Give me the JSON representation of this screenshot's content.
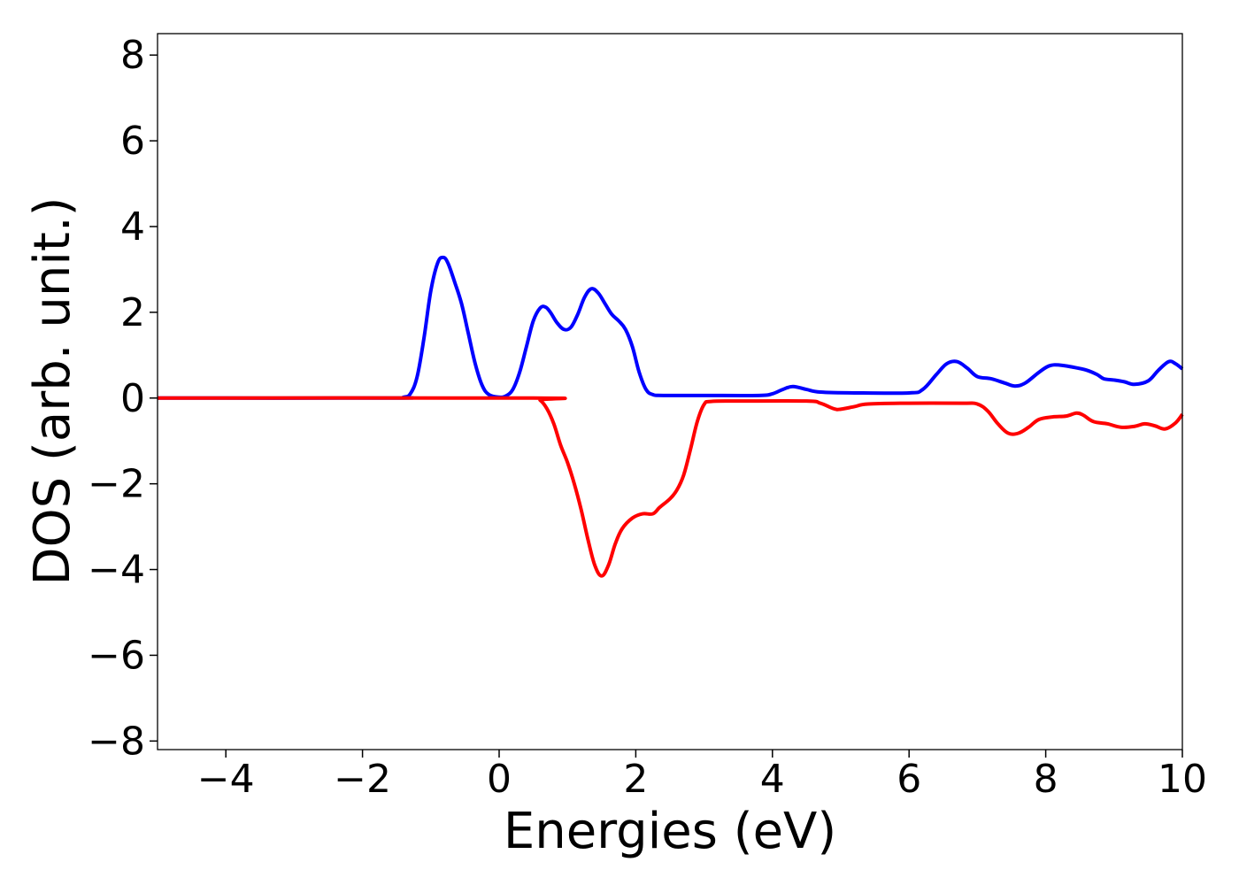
{
  "chart_data": {
    "type": "line",
    "xlabel": "Energies (eV)",
    "ylabel": "DOS (arb. unit.)",
    "xlim": [
      -5,
      10
    ],
    "ylim": [
      -8.2,
      8.5
    ],
    "xticks": [
      -4,
      -2,
      0,
      2,
      4,
      6,
      8,
      10
    ],
    "yticks": [
      -8,
      -6,
      -4,
      -2,
      0,
      2,
      4,
      6,
      8
    ],
    "xtick_labels": [
      "−4",
      "−2",
      "0",
      "2",
      "4",
      "6",
      "8",
      "10"
    ],
    "ytick_labels": [
      "−8",
      "−6",
      "−4",
      "−2",
      "0",
      "2",
      "4",
      "6",
      "8"
    ],
    "grid": false,
    "series": [
      {
        "color": "#0000ff",
        "points": [
          [
            -5,
            0
          ],
          [
            -1.6,
            0
          ],
          [
            -1.4,
            0.02
          ],
          [
            -1.3,
            0.1
          ],
          [
            -1.2,
            0.5
          ],
          [
            -1.1,
            1.4
          ],
          [
            -1.0,
            2.5
          ],
          [
            -0.9,
            3.15
          ],
          [
            -0.82,
            3.28
          ],
          [
            -0.75,
            3.15
          ],
          [
            -0.65,
            2.7
          ],
          [
            -0.55,
            2.2
          ],
          [
            -0.45,
            1.5
          ],
          [
            -0.35,
            0.8
          ],
          [
            -0.25,
            0.3
          ],
          [
            -0.15,
            0.08
          ],
          [
            0,
            0.02
          ],
          [
            0.1,
            0.05
          ],
          [
            0.2,
            0.2
          ],
          [
            0.3,
            0.6
          ],
          [
            0.4,
            1.2
          ],
          [
            0.5,
            1.8
          ],
          [
            0.6,
            2.1
          ],
          [
            0.68,
            2.12
          ],
          [
            0.75,
            2.0
          ],
          [
            0.85,
            1.75
          ],
          [
            0.95,
            1.6
          ],
          [
            1.05,
            1.65
          ],
          [
            1.15,
            1.95
          ],
          [
            1.25,
            2.35
          ],
          [
            1.35,
            2.55
          ],
          [
            1.45,
            2.45
          ],
          [
            1.55,
            2.2
          ],
          [
            1.65,
            1.95
          ],
          [
            1.75,
            1.8
          ],
          [
            1.85,
            1.6
          ],
          [
            1.95,
            1.2
          ],
          [
            2.05,
            0.6
          ],
          [
            2.15,
            0.2
          ],
          [
            2.25,
            0.08
          ],
          [
            2.4,
            0.06
          ],
          [
            3.0,
            0.06
          ],
          [
            3.8,
            0.06
          ],
          [
            4.0,
            0.1
          ],
          [
            4.15,
            0.2
          ],
          [
            4.3,
            0.27
          ],
          [
            4.5,
            0.2
          ],
          [
            4.7,
            0.14
          ],
          [
            5.2,
            0.12
          ],
          [
            6.0,
            0.12
          ],
          [
            6.2,
            0.2
          ],
          [
            6.4,
            0.55
          ],
          [
            6.55,
            0.8
          ],
          [
            6.7,
            0.85
          ],
          [
            6.85,
            0.7
          ],
          [
            7.0,
            0.5
          ],
          [
            7.2,
            0.45
          ],
          [
            7.4,
            0.35
          ],
          [
            7.55,
            0.28
          ],
          [
            7.7,
            0.35
          ],
          [
            7.9,
            0.6
          ],
          [
            8.05,
            0.75
          ],
          [
            8.2,
            0.77
          ],
          [
            8.4,
            0.72
          ],
          [
            8.6,
            0.65
          ],
          [
            8.75,
            0.55
          ],
          [
            8.85,
            0.45
          ],
          [
            9.0,
            0.42
          ],
          [
            9.15,
            0.38
          ],
          [
            9.3,
            0.32
          ],
          [
            9.5,
            0.4
          ],
          [
            9.65,
            0.65
          ],
          [
            9.8,
            0.85
          ],
          [
            9.9,
            0.8
          ],
          [
            10.0,
            0.68
          ]
        ]
      },
      {
        "color": "#ff0000",
        "points": [
          [
            -5,
            0
          ],
          [
            0.5,
            0
          ],
          [
            0.6,
            -0.05
          ],
          [
            0.7,
            -0.25
          ],
          [
            0.8,
            -0.6
          ],
          [
            0.9,
            -1.1
          ],
          [
            1.0,
            -1.5
          ],
          [
            1.1,
            -2.0
          ],
          [
            1.2,
            -2.6
          ],
          [
            1.3,
            -3.3
          ],
          [
            1.4,
            -3.9
          ],
          [
            1.5,
            -4.15
          ],
          [
            1.6,
            -3.9
          ],
          [
            1.7,
            -3.4
          ],
          [
            1.8,
            -3.05
          ],
          [
            1.95,
            -2.8
          ],
          [
            2.1,
            -2.7
          ],
          [
            2.25,
            -2.7
          ],
          [
            2.35,
            -2.55
          ],
          [
            2.5,
            -2.35
          ],
          [
            2.6,
            -2.15
          ],
          [
            2.7,
            -1.8
          ],
          [
            2.8,
            -1.2
          ],
          [
            2.9,
            -0.55
          ],
          [
            3.0,
            -0.15
          ],
          [
            3.1,
            -0.08
          ],
          [
            3.5,
            -0.07
          ],
          [
            4.5,
            -0.07
          ],
          [
            4.7,
            -0.12
          ],
          [
            4.9,
            -0.25
          ],
          [
            5.0,
            -0.26
          ],
          [
            5.2,
            -0.2
          ],
          [
            5.4,
            -0.14
          ],
          [
            6.0,
            -0.12
          ],
          [
            6.8,
            -0.12
          ],
          [
            7.0,
            -0.14
          ],
          [
            7.15,
            -0.3
          ],
          [
            7.3,
            -0.6
          ],
          [
            7.45,
            -0.82
          ],
          [
            7.6,
            -0.82
          ],
          [
            7.75,
            -0.68
          ],
          [
            7.9,
            -0.5
          ],
          [
            8.1,
            -0.44
          ],
          [
            8.3,
            -0.42
          ],
          [
            8.45,
            -0.35
          ],
          [
            8.55,
            -0.4
          ],
          [
            8.7,
            -0.55
          ],
          [
            8.9,
            -0.6
          ],
          [
            9.1,
            -0.68
          ],
          [
            9.3,
            -0.66
          ],
          [
            9.45,
            -0.6
          ],
          [
            9.6,
            -0.65
          ],
          [
            9.75,
            -0.72
          ],
          [
            9.9,
            -0.58
          ],
          [
            10.0,
            -0.38
          ]
        ]
      }
    ]
  }
}
